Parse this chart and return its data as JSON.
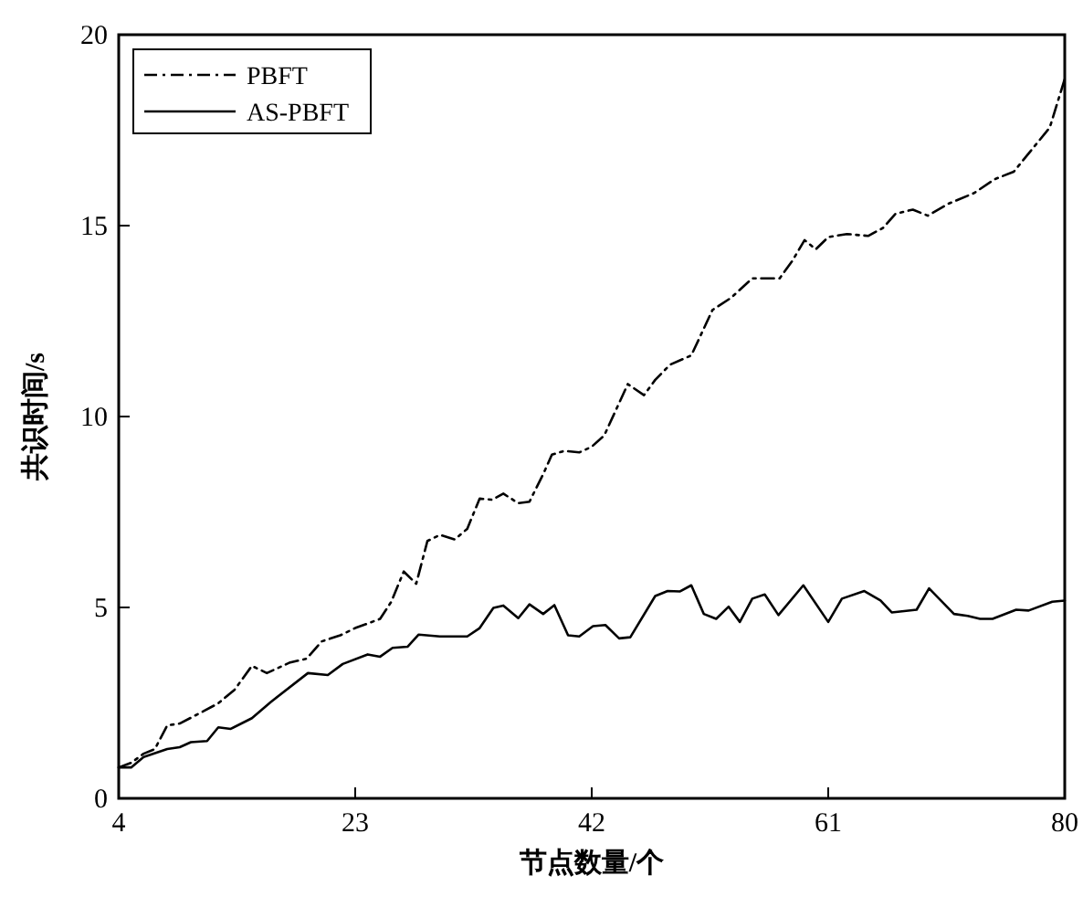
{
  "chart_data": {
    "type": "line",
    "xlabel": "节点数量/个",
    "ylabel": "共识时间/s",
    "xlim": [
      4,
      80
    ],
    "xticks": [
      4,
      23,
      42,
      61,
      80
    ],
    "ylim": [
      0,
      20
    ],
    "yticks": [
      0,
      5,
      10,
      15,
      20
    ],
    "grid": false,
    "legend": "top left",
    "marker": "none",
    "series": [
      {
        "name": "PBFT",
        "color": "#000000",
        "line_style": "dashed",
        "x": [
          4,
          5,
          6,
          6.9,
          7.9,
          8.9,
          10.8,
          12,
          13.3,
          14.7,
          15.9,
          17.7,
          19.1,
          20.3,
          21.8,
          23,
          25,
          25.9,
          26.9,
          27.9,
          28.8,
          29.8,
          31,
          32,
          33,
          34,
          34.9,
          36.1,
          37,
          38.1,
          38.8,
          39.8,
          41,
          42,
          43,
          44.9,
          46.2,
          47.1,
          48.3,
          50,
          51.7,
          53.2,
          54.9,
          57.1,
          58.1,
          59.1,
          60,
          61,
          62.5,
          64.2,
          65.4,
          66.4,
          67.8,
          69,
          70.7,
          72.7,
          74.4,
          75.9,
          77.6,
          78.8,
          80
        ],
        "values": [
          0.81,
          0.93,
          1.17,
          1.29,
          1.91,
          1.96,
          2.28,
          2.49,
          2.84,
          3.47,
          3.28,
          3.55,
          3.66,
          4.11,
          4.27,
          4.46,
          4.7,
          5.15,
          5.94,
          5.62,
          6.74,
          6.9,
          6.78,
          7.06,
          7.85,
          7.82,
          7.98,
          7.73,
          7.77,
          8.49,
          9,
          9.1,
          9.06,
          9.21,
          9.5,
          10.85,
          10.56,
          10.96,
          11.36,
          11.6,
          12.79,
          13.11,
          13.62,
          13.62,
          14.07,
          14.62,
          14.38,
          14.7,
          14.78,
          14.73,
          14.94,
          15.31,
          15.42,
          15.26,
          15.58,
          15.85,
          16.22,
          16.41,
          17.09,
          17.57,
          18.84
        ]
      },
      {
        "name": "AS-PBFT",
        "color": "#000000",
        "line_style": "solid",
        "x": [
          4,
          5,
          6,
          7.9,
          8.9,
          9.8,
          11.1,
          12,
          13,
          14.7,
          16.2,
          19.2,
          20.8,
          22,
          24,
          25,
          26,
          27.2,
          28.1,
          29.8,
          32,
          33,
          34.1,
          34.9,
          36.1,
          37,
          38.1,
          39,
          40.1,
          41,
          42.1,
          43.1,
          44.2,
          45.1,
          47.1,
          48.1,
          49.1,
          50,
          51,
          52,
          53,
          53.9,
          54.9,
          55.9,
          57,
          59,
          61,
          62.1,
          63.9,
          65.2,
          66.1,
          68.1,
          69.1,
          71.1,
          72.2,
          73.2,
          74.2,
          76.1,
          77.1,
          79,
          80
        ],
        "values": [
          0.81,
          0.81,
          1.08,
          1.29,
          1.34,
          1.47,
          1.5,
          1.86,
          1.82,
          2.1,
          2.52,
          3.28,
          3.23,
          3.52,
          3.77,
          3.71,
          3.94,
          3.97,
          4.29,
          4.24,
          4.24,
          4.46,
          4.99,
          5.05,
          4.72,
          5.08,
          4.83,
          5.06,
          4.27,
          4.24,
          4.51,
          4.54,
          4.19,
          4.22,
          5.3,
          5.43,
          5.42,
          5.58,
          4.83,
          4.7,
          5.02,
          4.62,
          5.23,
          5.34,
          4.8,
          5.58,
          4.62,
          5.23,
          5.43,
          5.18,
          4.87,
          4.94,
          5.5,
          4.83,
          4.78,
          4.7,
          4.7,
          4.94,
          4.92,
          5.15,
          5.18
        ]
      }
    ]
  }
}
